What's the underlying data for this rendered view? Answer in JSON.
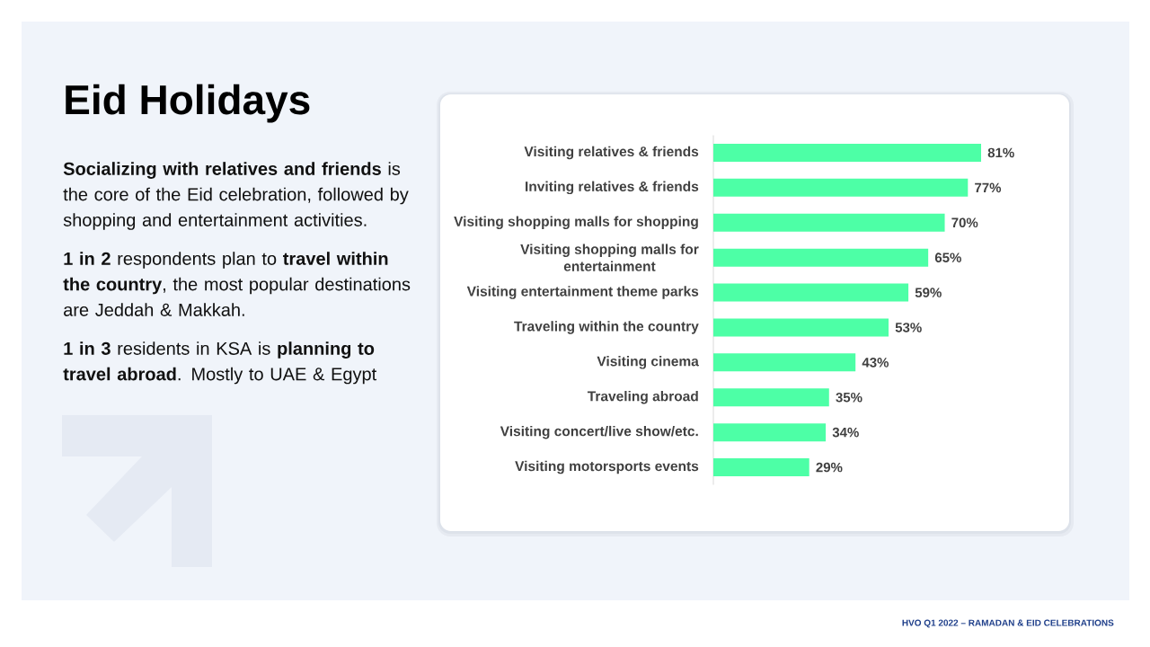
{
  "chart_data": {
    "type": "bar",
    "orientation": "horizontal",
    "title": "Eid Holidays",
    "categories": [
      "Visiting relatives & friends",
      "Inviting relatives & friends",
      "Visiting shopping malls for shopping",
      "Visiting shopping malls for entertainment",
      "Visiting entertainment theme parks",
      "Traveling within the country",
      "Visiting cinema",
      "Traveling abroad",
      "Visiting concert/live show/etc.",
      "Visiting motorsports events"
    ],
    "values": [
      81,
      77,
      70,
      65,
      59,
      53,
      43,
      35,
      34,
      29
    ],
    "value_labels": [
      "81%",
      "77%",
      "70%",
      "65%",
      "59%",
      "53%",
      "43%",
      "35%",
      "34%",
      "29%"
    ],
    "color": "#4dffa6",
    "tick_labels": "y",
    "annotations": [
      "**Socializing with relatives and friends** is the core of the Eid celebration, followed by shopping and entertainment activities.",
      "**1 in 2** respondents plan to **travel within the country**, the most popular destinations are Jeddah & Makkah.",
      "**1 in 3** residents in KSA is **planning to travel abroad**. Mostly to UAE & Egypt",
      "HVO Q1 2022 – RAMADAN & EID CELEBRATIONS"
    ]
  }
}
